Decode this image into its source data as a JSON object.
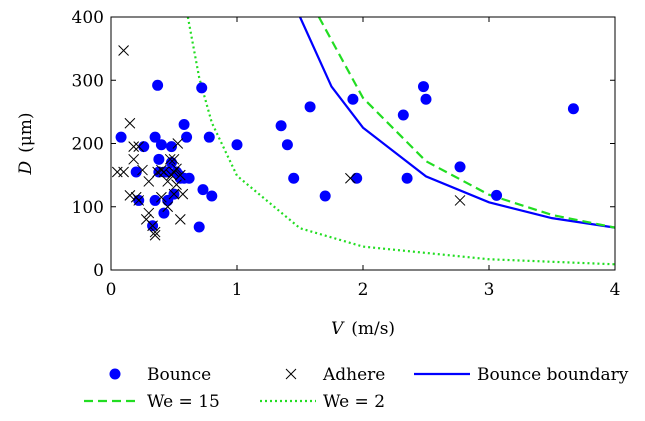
{
  "chart_data": {
    "type": "scatter",
    "xlabel": {
      "symbol": "V",
      "unit": "(m/s)"
    },
    "ylabel": {
      "symbol": "D",
      "unit": "(μm)"
    },
    "xlim": [
      0,
      4
    ],
    "ylim": [
      0,
      400
    ],
    "xticks": [
      "0",
      "1",
      "2",
      "3",
      "4"
    ],
    "yticks": [
      "0",
      "100",
      "200",
      "300",
      "400"
    ],
    "grid": false,
    "legend_position": "bottom",
    "series": [
      {
        "name": "Bounce",
        "marker": "filled-circle",
        "color": "#0000ff",
        "points": [
          [
            0.08,
            210
          ],
          [
            0.2,
            155
          ],
          [
            0.22,
            110
          ],
          [
            0.26,
            195
          ],
          [
            0.33,
            70
          ],
          [
            0.35,
            110
          ],
          [
            0.35,
            210
          ],
          [
            0.37,
            292
          ],
          [
            0.38,
            175
          ],
          [
            0.38,
            155
          ],
          [
            0.4,
            198
          ],
          [
            0.42,
            90
          ],
          [
            0.43,
            155
          ],
          [
            0.45,
            110
          ],
          [
            0.45,
            155
          ],
          [
            0.48,
            170
          ],
          [
            0.48,
            195
          ],
          [
            0.5,
            120
          ],
          [
            0.52,
            155
          ],
          [
            0.54,
            150
          ],
          [
            0.55,
            145
          ],
          [
            0.58,
            230
          ],
          [
            0.58,
            145
          ],
          [
            0.6,
            210
          ],
          [
            0.62,
            145
          ],
          [
            0.7,
            68
          ],
          [
            0.72,
            288
          ],
          [
            0.73,
            127
          ],
          [
            0.78,
            210
          ],
          [
            0.8,
            117
          ],
          [
            1.0,
            198
          ],
          [
            1.35,
            228
          ],
          [
            1.4,
            198
          ],
          [
            1.45,
            145
          ],
          [
            1.58,
            258
          ],
          [
            1.7,
            117
          ],
          [
            1.92,
            270
          ],
          [
            1.95,
            145
          ],
          [
            2.32,
            245
          ],
          [
            2.35,
            145
          ],
          [
            2.48,
            290
          ],
          [
            2.5,
            270
          ],
          [
            2.77,
            163
          ],
          [
            3.06,
            118
          ],
          [
            3.67,
            255
          ]
        ]
      },
      {
        "name": "Adhere",
        "marker": "cross",
        "color": "#000000",
        "points": [
          [
            0.1,
            347
          ],
          [
            0.05,
            155
          ],
          [
            0.1,
            155
          ],
          [
            0.15,
            232
          ],
          [
            0.15,
            118
          ],
          [
            0.18,
            195
          ],
          [
            0.18,
            175
          ],
          [
            0.2,
            115
          ],
          [
            0.22,
            195
          ],
          [
            0.22,
            110
          ],
          [
            0.25,
            158
          ],
          [
            0.28,
            80
          ],
          [
            0.3,
            140
          ],
          [
            0.3,
            90
          ],
          [
            0.33,
            70
          ],
          [
            0.35,
            55
          ],
          [
            0.35,
            60
          ],
          [
            0.37,
            155
          ],
          [
            0.4,
            115
          ],
          [
            0.4,
            158
          ],
          [
            0.42,
            155
          ],
          [
            0.45,
            100
          ],
          [
            0.45,
            140
          ],
          [
            0.47,
            175
          ],
          [
            0.48,
            150
          ],
          [
            0.5,
            120
          ],
          [
            0.5,
            155
          ],
          [
            0.5,
            175
          ],
          [
            0.52,
            160
          ],
          [
            0.52,
            135
          ],
          [
            0.53,
            200
          ],
          [
            0.55,
            80
          ],
          [
            0.55,
            150
          ],
          [
            0.57,
            120
          ],
          [
            1.9,
            145
          ],
          [
            2.77,
            110
          ]
        ]
      },
      {
        "name": "Bounce boundary",
        "kind": "curve",
        "style": "solid",
        "color": "#0000ff",
        "points": [
          [
            1.5,
            400
          ],
          [
            1.75,
            290
          ],
          [
            2.0,
            225
          ],
          [
            2.5,
            148
          ],
          [
            3.0,
            107
          ],
          [
            3.5,
            82
          ],
          [
            4.0,
            67
          ]
        ]
      },
      {
        "name": "We = 15",
        "kind": "curve",
        "style": "dashed",
        "color": "#22dd22",
        "points": [
          [
            1.65,
            400
          ],
          [
            2.0,
            272
          ],
          [
            2.5,
            172
          ],
          [
            3.0,
            119
          ],
          [
            3.5,
            87
          ],
          [
            4.0,
            67
          ]
        ]
      },
      {
        "name": "We = 2",
        "kind": "curve",
        "style": "dotted",
        "color": "#22dd22",
        "points": [
          [
            0.61,
            400
          ],
          [
            0.7,
            304
          ],
          [
            0.8,
            233
          ],
          [
            1.0,
            149
          ],
          [
            1.5,
            66
          ],
          [
            2.0,
            37
          ],
          [
            3.0,
            17
          ],
          [
            4.0,
            9
          ]
        ]
      }
    ]
  }
}
